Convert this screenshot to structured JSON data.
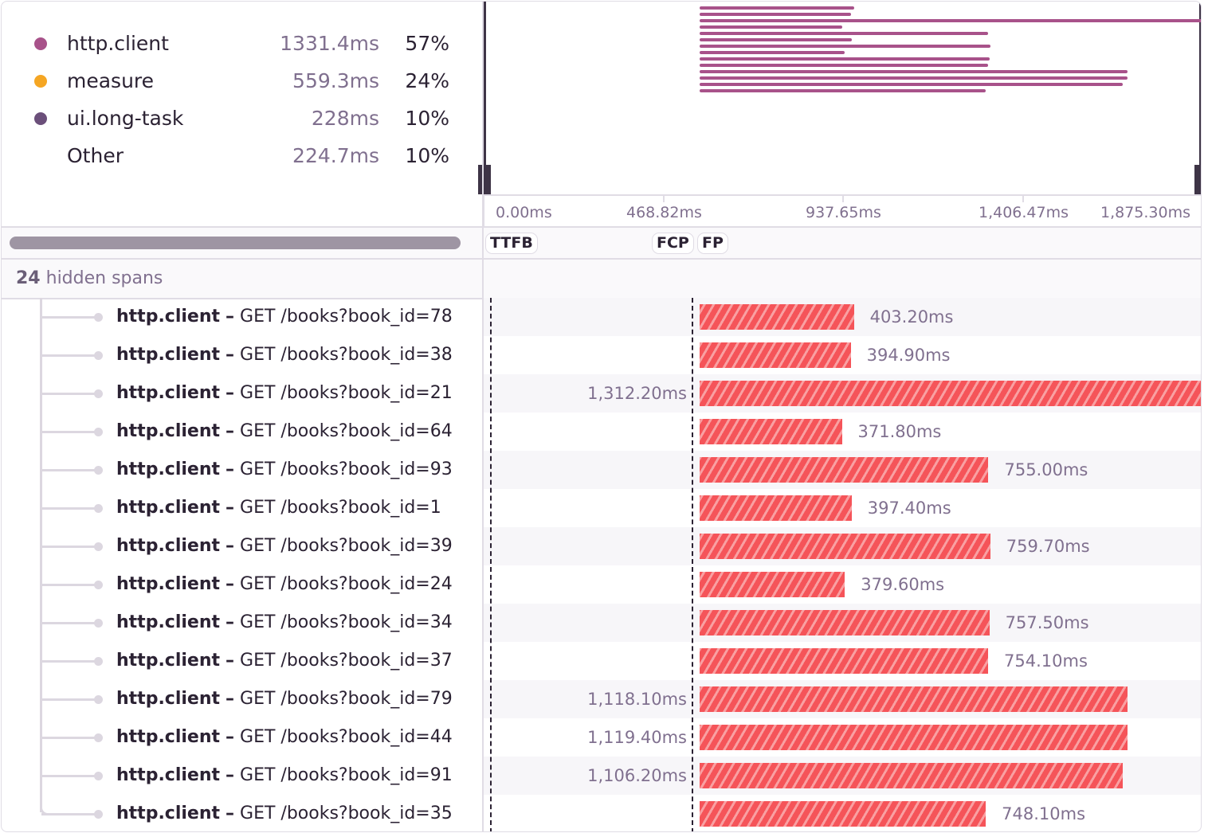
{
  "legend": [
    {
      "name": "http.client",
      "duration": "1331.4ms",
      "percent": "57%",
      "color": "#a8528a"
    },
    {
      "name": "measure",
      "duration": "559.3ms",
      "percent": "24%",
      "color": "#f5a623"
    },
    {
      "name": "ui.long-task",
      "duration": "228ms",
      "percent": "10%",
      "color": "#6b4f7a"
    },
    {
      "name": "Other",
      "duration": "224.7ms",
      "percent": "10%",
      "color": ""
    }
  ],
  "axis": {
    "ticks": [
      "0.00ms",
      "468.82ms",
      "937.65ms",
      "1,406.47ms",
      "1,875.30ms"
    ]
  },
  "markers": [
    "TTFB",
    "FCP",
    "FP"
  ],
  "hidden": {
    "count": "24",
    "label": "hidden spans"
  },
  "colors": {
    "span": "#f55459",
    "minimap": "#a8528a"
  },
  "spans": [
    {
      "op": "http.client",
      "desc": "GET /books?book_id=78",
      "duration": "403.20ms",
      "ms": 403.2
    },
    {
      "op": "http.client",
      "desc": "GET /books?book_id=38",
      "duration": "394.90ms",
      "ms": 394.9
    },
    {
      "op": "http.client",
      "desc": "GET /books?book_id=21",
      "duration": "1,312.20ms",
      "ms": 1312.2
    },
    {
      "op": "http.client",
      "desc": "GET /books?book_id=64",
      "duration": "371.80ms",
      "ms": 371.8
    },
    {
      "op": "http.client",
      "desc": "GET /books?book_id=93",
      "duration": "755.00ms",
      "ms": 755.0
    },
    {
      "op": "http.client",
      "desc": "GET /books?book_id=1",
      "duration": "397.40ms",
      "ms": 397.4
    },
    {
      "op": "http.client",
      "desc": "GET /books?book_id=39",
      "duration": "759.70ms",
      "ms": 759.7
    },
    {
      "op": "http.client",
      "desc": "GET /books?book_id=24",
      "duration": "379.60ms",
      "ms": 379.6
    },
    {
      "op": "http.client",
      "desc": "GET /books?book_id=34",
      "duration": "757.50ms",
      "ms": 757.5
    },
    {
      "op": "http.client",
      "desc": "GET /books?book_id=37",
      "duration": "754.10ms",
      "ms": 754.1
    },
    {
      "op": "http.client",
      "desc": "GET /books?book_id=79",
      "duration": "1,118.10ms",
      "ms": 1118.1
    },
    {
      "op": "http.client",
      "desc": "GET /books?book_id=44",
      "duration": "1,119.40ms",
      "ms": 1119.4
    },
    {
      "op": "http.client",
      "desc": "GET /books?book_id=91",
      "duration": "1,106.20ms",
      "ms": 1106.2
    },
    {
      "op": "http.client",
      "desc": "GET /books?book_id=35",
      "duration": "748.10ms",
      "ms": 748.1
    }
  ]
}
